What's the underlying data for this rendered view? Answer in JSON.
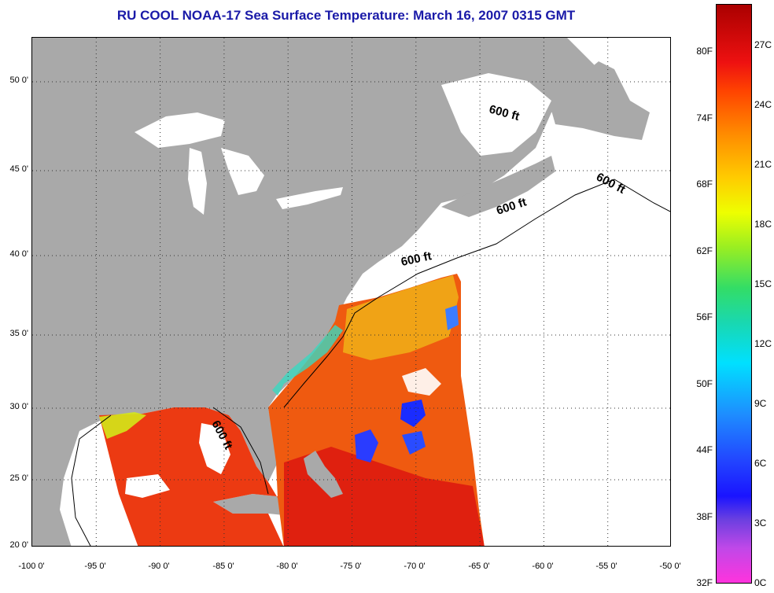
{
  "title": "RU COOL  NOAA-17  Sea Surface Temperature:  March 16, 2007 0315 GMT",
  "latitude_labels": [
    "50 0'",
    "45 0'",
    "40 0'",
    "35 0'",
    "30 0'",
    "25 0'",
    "20 0'"
  ],
  "longitude_labels": [
    "-100 0'",
    "-95 0'",
    "-90 0'",
    "-85 0'",
    "-80 0'",
    "-75 0'",
    "-70 0'",
    "-65 0'",
    "-60 0'",
    "-55 0'",
    "-50 0'"
  ],
  "contour_labels": [
    "600 ft",
    "600 ft",
    "600 ft",
    "600 ft",
    "600 ft"
  ],
  "colorbar": {
    "fahrenheit_labels": [
      "80F",
      "74F",
      "68F",
      "62F",
      "56F",
      "50F",
      "44F",
      "38F",
      "32F"
    ],
    "celsius_labels": [
      "27C",
      "24C",
      "21C",
      "18C",
      "15C",
      "12C",
      "9C",
      "6C",
      "3C",
      "0C"
    ]
  },
  "colors": {
    "land": "#a9a9a9",
    "no_data": "#ffffff",
    "title": "#1a1aa8",
    "warm": "#e83010",
    "cold": "#1a2cff"
  }
}
